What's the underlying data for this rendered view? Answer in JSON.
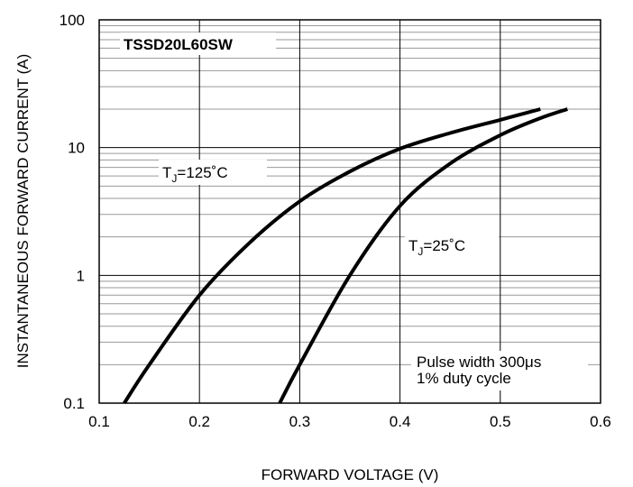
{
  "chart_data": {
    "type": "line",
    "title": "TSSD20L60SW",
    "xlabel": "FORWARD VOLTAGE (V)",
    "ylabel": "INSTANTANEOUS FORWARD CURRENT (A)",
    "xlim": [
      0.1,
      0.6
    ],
    "ylim": [
      0.1,
      100
    ],
    "y_scale": "log",
    "grid": true,
    "x_ticks": [
      "0.1",
      "0.2",
      "0.3",
      "0.4",
      "0.5",
      "0.6"
    ],
    "y_ticks": [
      "0.1",
      "1",
      "10",
      "100"
    ],
    "series": [
      {
        "name": "TJ=125°C",
        "x": [
          0.125,
          0.15,
          0.2,
          0.25,
          0.3,
          0.35,
          0.4,
          0.45,
          0.5,
          0.54
        ],
        "y": [
          0.1,
          0.2,
          0.7,
          1.8,
          3.8,
          6.5,
          9.8,
          13,
          16.5,
          20
        ]
      },
      {
        "name": "TJ=25°C",
        "x": [
          0.28,
          0.3,
          0.35,
          0.4,
          0.45,
          0.5,
          0.54,
          0.567
        ],
        "y": [
          0.1,
          0.2,
          1.0,
          3.5,
          7.5,
          12.5,
          17,
          20
        ]
      }
    ],
    "labels": {
      "t125_main": "T",
      "t125_sub": "J",
      "t125_rest": "=125˚C",
      "t25_main": "T",
      "t25_sub": "J",
      "t25_rest": "=25˚C"
    },
    "note_lines": [
      "Pulse width 300μs",
      "1% duty cycle"
    ]
  }
}
